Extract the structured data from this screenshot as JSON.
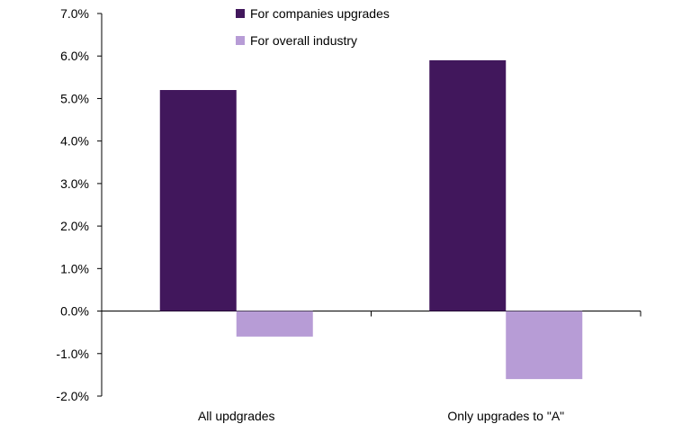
{
  "chart_data": {
    "type": "bar",
    "title": "",
    "xlabel": "",
    "ylabel": "",
    "categories": [
      "All updgrades",
      "Only upgrades to \"A\""
    ],
    "series": [
      {
        "name": "For companies upgrades",
        "color": "#41175C",
        "values": [
          5.2,
          5.9
        ]
      },
      {
        "name": "For overall industry",
        "color": "#B79CD6",
        "values": [
          -0.6,
          -1.6
        ]
      }
    ],
    "ylim": [
      -2.0,
      7.0
    ],
    "yticks": [
      {
        "value": 7.0,
        "label": "7.0%"
      },
      {
        "value": 6.0,
        "label": "6.0%"
      },
      {
        "value": 5.0,
        "label": "5.0%"
      },
      {
        "value": 4.0,
        "label": "4.0%"
      },
      {
        "value": 3.0,
        "label": "3.0%"
      },
      {
        "value": 2.0,
        "label": "2.0%"
      },
      {
        "value": 1.0,
        "label": "1.0%"
      },
      {
        "value": 0.0,
        "label": "0.0%"
      },
      {
        "value": -1.0,
        "label": "-1.0%"
      },
      {
        "value": -2.0,
        "label": "-2.0%"
      }
    ],
    "grid": false,
    "legend": "top-center"
  }
}
